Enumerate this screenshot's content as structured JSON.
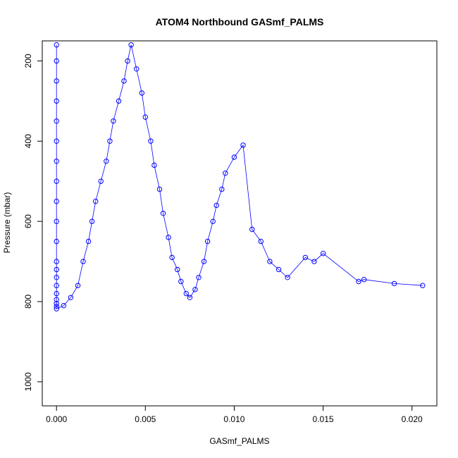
{
  "chart_data": {
    "type": "scatter",
    "title": "ATOM4 Northbound GASmf_PALMS",
    "xlabel": "GASmf_PALMS",
    "ylabel": "Pressure (mbar)",
    "xlim": [
      -0.0008,
      0.0214
    ],
    "ylim": [
      1060,
      150
    ],
    "y_reversed": true,
    "x_ticks": [
      0.0,
      0.005,
      0.01,
      0.015,
      0.02
    ],
    "x_tick_labels": [
      "0.000",
      "0.005",
      "0.010",
      "0.015",
      "0.020"
    ],
    "y_ticks": [
      200,
      400,
      600,
      800,
      1000
    ],
    "y_tick_labels": [
      "200",
      "400",
      "600",
      "800",
      "1000"
    ],
    "grid": false,
    "marker": "open-circle",
    "line": true,
    "color": "#0000ff",
    "series": [
      {
        "x": [
          0.0,
          0.0,
          0.0,
          0.0,
          0.0,
          0.0,
          0.0,
          0.0,
          0.0,
          0.0,
          0.0,
          0.0,
          0.0,
          0.0,
          0.0,
          0.0,
          0.0,
          0.0,
          0.0,
          0.0,
          0.0004,
          0.0008,
          0.0012,
          0.0015,
          0.0018,
          0.002,
          0.0022,
          0.0025,
          0.0028,
          0.003,
          0.0032,
          0.0035,
          0.0038,
          0.004,
          0.0042,
          0.0045,
          0.0048,
          0.005,
          0.0053,
          0.0055,
          0.0058,
          0.006,
          0.0063,
          0.0065,
          0.0068,
          0.007,
          0.0073,
          0.0075,
          0.0078,
          0.008,
          0.0083,
          0.0085,
          0.0088,
          0.009,
          0.0093,
          0.0095,
          0.01,
          0.0105,
          0.011,
          0.0115,
          0.012,
          0.0125,
          0.013,
          0.014,
          0.0145,
          0.015,
          0.017,
          0.0173,
          0.019,
          0.0206
        ],
        "y": [
          160,
          200,
          250,
          300,
          350,
          400,
          450,
          500,
          550,
          600,
          650,
          700,
          720,
          740,
          760,
          780,
          795,
          805,
          812,
          818,
          810,
          790,
          760,
          700,
          650,
          600,
          550,
          500,
          450,
          400,
          350,
          300,
          250,
          200,
          160,
          220,
          280,
          340,
          400,
          460,
          520,
          580,
          640,
          690,
          720,
          750,
          780,
          790,
          770,
          740,
          700,
          650,
          600,
          560,
          520,
          480,
          440,
          410,
          620,
          650,
          700,
          720,
          740,
          690,
          700,
          680,
          750,
          745,
          755,
          760
        ]
      }
    ]
  }
}
